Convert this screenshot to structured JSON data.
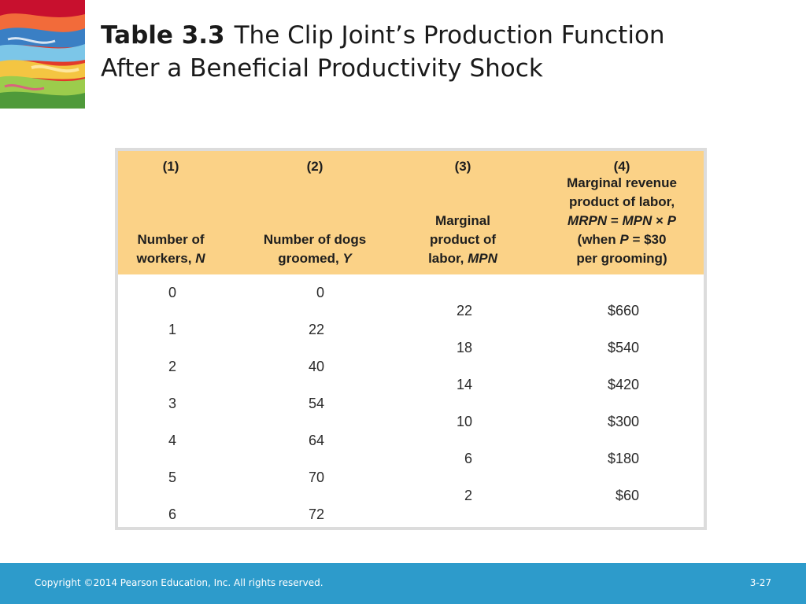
{
  "slide": {
    "title_bold": "Table 3.3",
    "title_line1": "The Clip Joint’s Production Function",
    "title_line2": "After a Beneficial Productivity Shock"
  },
  "table": {
    "headers": [
      {
        "num": "(1)",
        "label_a": "Number of",
        "label_b": "workers, ",
        "label_var": "N"
      },
      {
        "num": "(2)",
        "label_a": "Number of dogs",
        "label_b": "groomed, ",
        "label_var": "Y"
      },
      {
        "num": "(3)",
        "label_a": "Marginal",
        "label_b": "product of",
        "label_c": "labor, ",
        "label_var": "MPN"
      },
      {
        "num": "(4)",
        "l1": "Marginal revenue",
        "l2": "product of labor,",
        "l3_a": "MRPN",
        "l3_b": " = ",
        "l3_c": "MPN",
        "l3_d": " × ",
        "l3_e": "P",
        "l4_a": "(when ",
        "l4_b": "P",
        "l4_c": " = $30",
        "l5": "per grooming)"
      }
    ],
    "workers": [
      "0",
      "1",
      "2",
      "3",
      "4",
      "5",
      "6"
    ],
    "dogs_groomed": [
      "0",
      "22",
      "40",
      "54",
      "64",
      "70",
      "72"
    ],
    "mpn": [
      "22",
      "18",
      "14",
      "10",
      "6",
      "2"
    ],
    "mrpn": [
      "$660",
      "$540",
      "$420",
      "$300",
      "$180",
      "$60"
    ]
  },
  "footer": {
    "copyright": "Copyright ©2014 Pearson Education, Inc. All rights reserved.",
    "page": "3-27"
  }
}
